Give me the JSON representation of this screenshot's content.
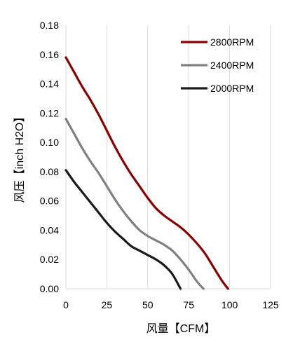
{
  "chart_data": {
    "type": "line",
    "title": "",
    "xlabel": "风量【CFM】",
    "ylabel": "风压【inch H2O】",
    "xlim": [
      0,
      125
    ],
    "ylim": [
      0,
      0.18
    ],
    "x_ticks": [
      "0",
      "25",
      "50",
      "75",
      "100",
      "125"
    ],
    "y_ticks": [
      "0.00",
      "0.02",
      "0.04",
      "0.06",
      "0.08",
      "0.10",
      "0.12",
      "0.14",
      "0.16",
      "0.18"
    ],
    "grid": "vertical",
    "legend_position": "top-right",
    "series": [
      {
        "name": "2800RPM",
        "color": "#8b0000",
        "points": [
          [
            0,
            0.158
          ],
          [
            5,
            0.148
          ],
          [
            10,
            0.138
          ],
          [
            15,
            0.129
          ],
          [
            20,
            0.119
          ],
          [
            25,
            0.108
          ],
          [
            30,
            0.097
          ],
          [
            35,
            0.087
          ],
          [
            40,
            0.078
          ],
          [
            45,
            0.07
          ],
          [
            50,
            0.062
          ],
          [
            55,
            0.055
          ],
          [
            60,
            0.05
          ],
          [
            65,
            0.046
          ],
          [
            70,
            0.042
          ],
          [
            75,
            0.037
          ],
          [
            80,
            0.031
          ],
          [
            85,
            0.024
          ],
          [
            90,
            0.015
          ],
          [
            95,
            0.006
          ],
          [
            99,
            0.0
          ]
        ]
      },
      {
        "name": "2400RPM",
        "color": "#808080",
        "points": [
          [
            0,
            0.116
          ],
          [
            5,
            0.106
          ],
          [
            10,
            0.096
          ],
          [
            15,
            0.087
          ],
          [
            20,
            0.079
          ],
          [
            25,
            0.07
          ],
          [
            30,
            0.061
          ],
          [
            35,
            0.053
          ],
          [
            40,
            0.046
          ],
          [
            45,
            0.04
          ],
          [
            50,
            0.036
          ],
          [
            55,
            0.033
          ],
          [
            60,
            0.03
          ],
          [
            65,
            0.026
          ],
          [
            70,
            0.02
          ],
          [
            75,
            0.013
          ],
          [
            80,
            0.005
          ],
          [
            84,
            0.0
          ]
        ]
      },
      {
        "name": "2000RPM",
        "color": "#1a1a1a",
        "points": [
          [
            0,
            0.081
          ],
          [
            5,
            0.073
          ],
          [
            10,
            0.066
          ],
          [
            15,
            0.059
          ],
          [
            20,
            0.052
          ],
          [
            25,
            0.045
          ],
          [
            30,
            0.039
          ],
          [
            35,
            0.034
          ],
          [
            40,
            0.029
          ],
          [
            45,
            0.026
          ],
          [
            50,
            0.023
          ],
          [
            55,
            0.02
          ],
          [
            60,
            0.016
          ],
          [
            65,
            0.01
          ],
          [
            70,
            0.0
          ]
        ]
      }
    ]
  }
}
